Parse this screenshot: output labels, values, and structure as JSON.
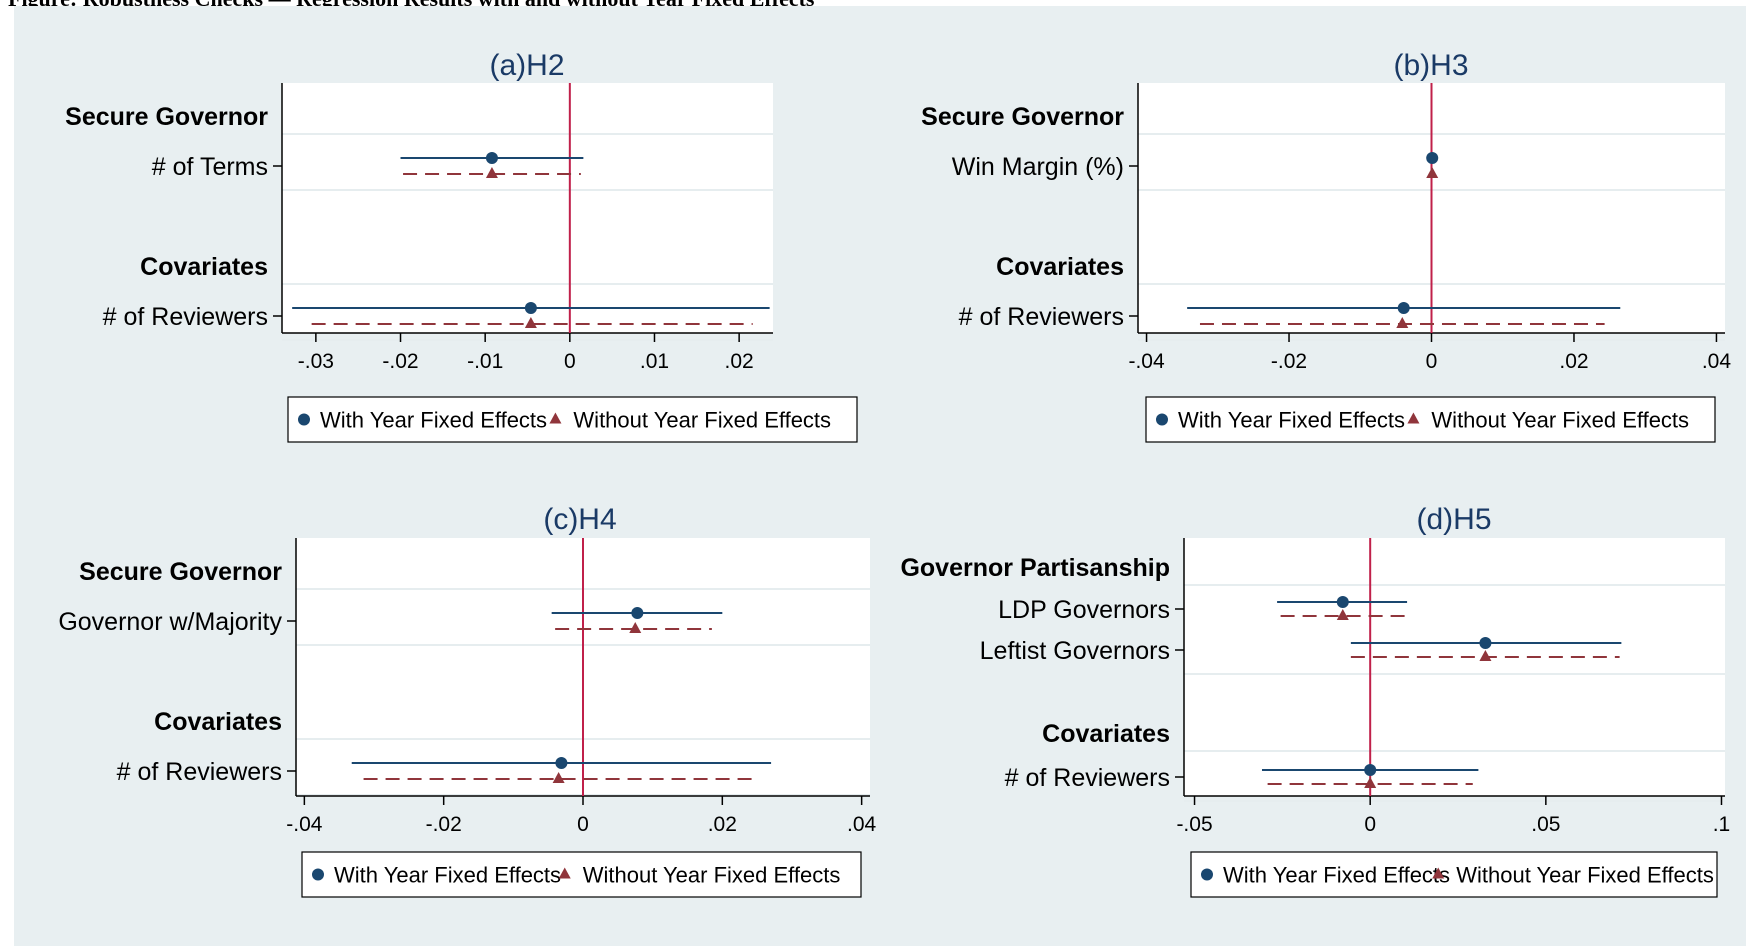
{
  "caption": "Figure: Robustness Checks — Regression Results with and without Year Fixed Effects",
  "colors": {
    "with_fe": "#1a476f",
    "without_fe": "#90353b",
    "zero_line": "#c0204a",
    "panel_bg": "#e8eff1",
    "subtitle": "#1a3a66"
  },
  "chart_data": [
    {
      "type": "coefficient-plot",
      "title": "(a)H2",
      "xlim": [
        -0.034,
        0.024
      ],
      "xticks": [
        -0.03,
        -0.02,
        -0.01,
        0,
        0.01,
        0.02
      ],
      "xtick_labels": [
        "-.03",
        "-.02",
        "-.01",
        "0",
        ".01",
        ".02"
      ],
      "groups": [
        {
          "label": "Secure Governor",
          "rows": [
            {
              "label": "# of Terms",
              "with_fe": {
                "coef": -0.0092,
                "lo": -0.02,
                "hi": 0.0016
              },
              "without_fe": {
                "coef": -0.0092,
                "lo": -0.0197,
                "hi": 0.0013
              }
            }
          ]
        },
        {
          "label": "Covariates",
          "rows": [
            {
              "label": "# of Reviewers",
              "with_fe": {
                "coef": -0.0046,
                "lo": -0.0328,
                "hi": 0.0236
              },
              "without_fe": {
                "coef": -0.0046,
                "lo": -0.0305,
                "hi": 0.0216
              }
            }
          ]
        }
      ],
      "legend": [
        "With Year Fixed Effects",
        "Without Year Fixed Effects"
      ],
      "legend_position": "bottom"
    },
    {
      "type": "coefficient-plot",
      "title": "(b)H3",
      "xlim": [
        -0.0412,
        0.0412
      ],
      "xticks": [
        -0.04,
        -0.02,
        0,
        0.02,
        0.04
      ],
      "xtick_labels": [
        "-.04",
        "-.02",
        "0",
        ".02",
        ".04"
      ],
      "groups": [
        {
          "label": "Secure Governor",
          "rows": [
            {
              "label": "Win Margin (%)",
              "with_fe": {
                "coef": 0.0001,
                "lo": 0.0,
                "hi": 0.0002
              },
              "without_fe": {
                "coef": 0.0001,
                "lo": 0.0,
                "hi": 0.0002
              }
            }
          ]
        },
        {
          "label": "Covariates",
          "rows": [
            {
              "label": "# of Reviewers",
              "with_fe": {
                "coef": -0.0039,
                "lo": -0.0343,
                "hi": 0.0265
              },
              "without_fe": {
                "coef": -0.0041,
                "lo": -0.0325,
                "hi": 0.0243
              }
            }
          ]
        }
      ],
      "legend": [
        "With Year Fixed Effects",
        "Without Year Fixed Effects"
      ],
      "legend_position": "bottom"
    },
    {
      "type": "coefficient-plot",
      "title": "(c)H4",
      "xlim": [
        -0.0412,
        0.0412
      ],
      "xticks": [
        -0.04,
        -0.02,
        0,
        0.02,
        0.04
      ],
      "xtick_labels": [
        "-.04",
        "-.02",
        "0",
        ".02",
        ".04"
      ],
      "groups": [
        {
          "label": "Secure Governor",
          "rows": [
            {
              "label": "Governor w/Majority",
              "with_fe": {
                "coef": 0.0078,
                "lo": -0.0045,
                "hi": 0.02
              },
              "without_fe": {
                "coef": 0.0075,
                "lo": -0.004,
                "hi": 0.0185
              }
            }
          ]
        },
        {
          "label": "Covariates",
          "rows": [
            {
              "label": "# of Reviewers",
              "with_fe": {
                "coef": -0.0031,
                "lo": -0.0332,
                "hi": 0.027
              },
              "without_fe": {
                "coef": -0.0035,
                "lo": -0.0315,
                "hi": 0.0248
              }
            }
          ]
        }
      ],
      "legend": [
        "With Year Fixed Effects",
        "Without Year Fixed Effects"
      ],
      "legend_position": "bottom"
    },
    {
      "type": "coefficient-plot",
      "title": "(d)H5",
      "xlim": [
        -0.053,
        0.101
      ],
      "xticks": [
        -0.05,
        0,
        0.05,
        0.1
      ],
      "xtick_labels": [
        "-.05",
        "0",
        ".05",
        ".1"
      ],
      "groups": [
        {
          "label": "Governor Partisanship",
          "rows": [
            {
              "label": "LDP Governors",
              "with_fe": {
                "coef": -0.0078,
                "lo": -0.0265,
                "hi": 0.0105
              },
              "without_fe": {
                "coef": -0.0078,
                "lo": -0.0255,
                "hi": 0.0105
              }
            },
            {
              "label": "Leftist Governors",
              "with_fe": {
                "coef": 0.0328,
                "lo": -0.0055,
                "hi": 0.0715
              },
              "without_fe": {
                "coef": 0.0328,
                "lo": -0.0055,
                "hi": 0.071
              }
            }
          ]
        },
        {
          "label": "Covariates",
          "rows": [
            {
              "label": "# of Reviewers",
              "with_fe": {
                "coef": 0.0,
                "lo": -0.0308,
                "hi": 0.0308
              },
              "without_fe": {
                "coef": 0.0,
                "lo": -0.0292,
                "hi": 0.0292
              }
            }
          ]
        }
      ],
      "legend": [
        "With Year Fixed Effects",
        "Without Year Fixed Effects"
      ],
      "legend_position": "bottom"
    }
  ]
}
